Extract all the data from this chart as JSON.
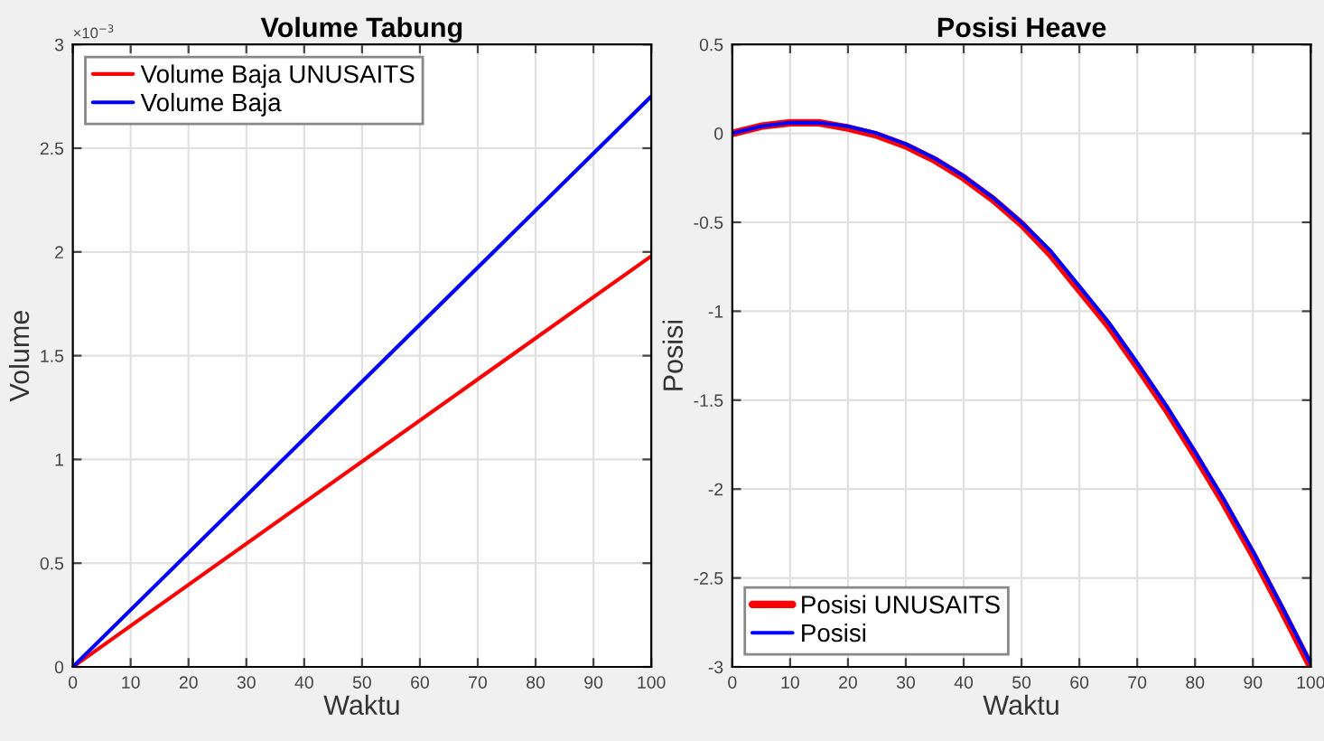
{
  "chart_data": [
    {
      "type": "line",
      "title": "Volume Tabung",
      "xlabel": "Waktu",
      "ylabel": "Volume",
      "annotations": [
        "×10$^{−3}$"
      ],
      "x": [
        0,
        100
      ],
      "series": [
        {
          "name": "Volume Baja UNUSAITS",
          "color": "#ff0000",
          "values": [
            0,
            1.98
          ]
        },
        {
          "name": "Volume Baja",
          "color": "#0000ff",
          "values": [
            0,
            2.75
          ]
        }
      ],
      "xlim": [
        0,
        100
      ],
      "xticks": [
        0,
        10,
        20,
        30,
        40,
        50,
        60,
        70,
        80,
        90,
        100
      ],
      "ylim": [
        0,
        3
      ],
      "yticks": [
        0,
        0.5,
        1,
        1.5,
        2,
        2.5,
        3
      ],
      "grid": true,
      "legend": "top left"
    },
    {
      "type": "line",
      "title": "Posisi Heave",
      "xlabel": "Waktu",
      "ylabel": "Posisi",
      "x": [
        0,
        5,
        10,
        15,
        20,
        25,
        30,
        35,
        40,
        45,
        50,
        55,
        60,
        65,
        70,
        75,
        80,
        85,
        90,
        95,
        100
      ],
      "series": [
        {
          "name": "Posisi UNUSAITS",
          "color": "#ff0000",
          "values": [
            0,
            0.04,
            0.06,
            0.06,
            0.03,
            -0.01,
            -0.07,
            -0.15,
            -0.25,
            -0.37,
            -0.51,
            -0.68,
            -0.88,
            -1.08,
            -1.31,
            -1.55,
            -1.81,
            -2.08,
            -2.37,
            -2.68,
            -3.0
          ]
        },
        {
          "name": "Posisi",
          "color": "#0000ff",
          "values": [
            0,
            0.04,
            0.06,
            0.06,
            0.04,
            0.0,
            -0.06,
            -0.14,
            -0.24,
            -0.36,
            -0.5,
            -0.66,
            -0.86,
            -1.06,
            -1.29,
            -1.53,
            -1.79,
            -2.06,
            -2.35,
            -2.66,
            -2.98
          ]
        }
      ],
      "xlim": [
        0,
        100
      ],
      "xticks": [
        0,
        10,
        20,
        30,
        40,
        50,
        60,
        70,
        80,
        90,
        100
      ],
      "ylim": [
        -3,
        0.5
      ],
      "yticks": [
        -3,
        -2.5,
        -2,
        -1.5,
        -1,
        -0.5,
        0,
        0.5
      ],
      "grid": true,
      "legend": "bottom left"
    }
  ]
}
